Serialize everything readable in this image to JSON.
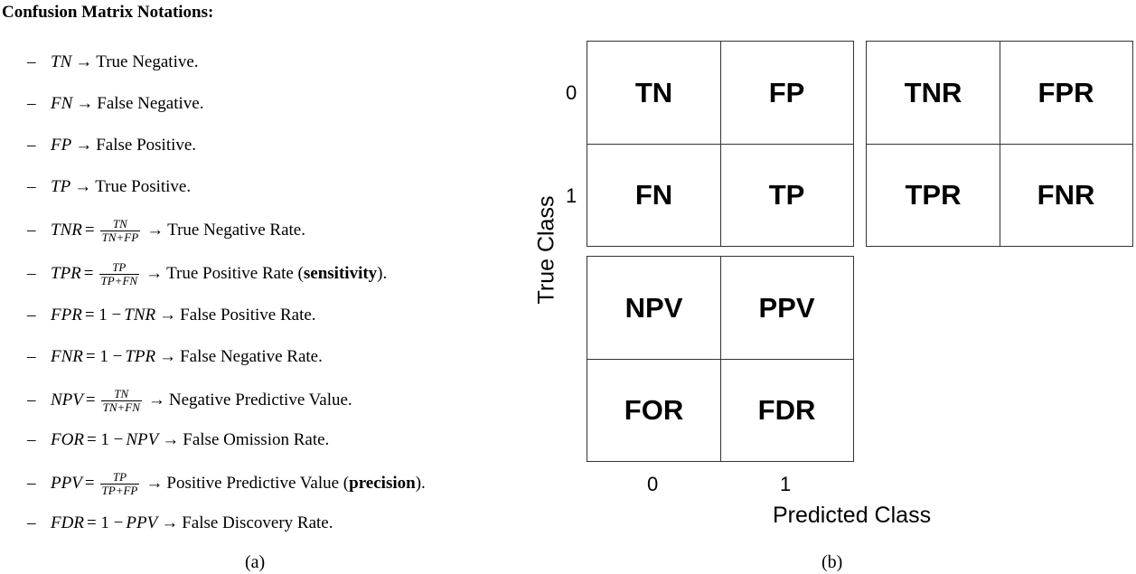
{
  "panel_a": {
    "heading": "Confusion Matrix Notations:",
    "dash": "–",
    "arrow": "→",
    "notations": [
      {
        "lhs": "TN",
        "desc": "True Negative."
      },
      {
        "lhs": "FN",
        "desc": "False Negative."
      },
      {
        "lhs": "FP",
        "desc": "False Positive."
      },
      {
        "lhs": "TP",
        "desc": "True Positive."
      },
      {
        "lhs": "TNR",
        "rel": "=",
        "num": "TN",
        "den": "TN+FP",
        "desc": "True Negative Rate."
      },
      {
        "lhs": "TPR",
        "rel": "=",
        "num": "TP",
        "den": "TP+FN",
        "desc": "True Positive Rate (",
        "desc_bold": "sensitivity",
        "desc_after": ")."
      },
      {
        "lhs": "FPR",
        "rel": "= 1 −",
        "expr": "TNR",
        "desc": "False Positive Rate."
      },
      {
        "lhs": "FNR",
        "rel": "= 1 −",
        "expr": "TPR",
        "desc": "False Negative Rate."
      },
      {
        "lhs": "NPV",
        "rel": "=",
        "num": "TN",
        "den": "TN+FN",
        "desc": "Negative Predictive Value."
      },
      {
        "lhs": "FOR",
        "rel": "= 1 −",
        "expr": "NPV",
        "desc": "False Omission Rate."
      },
      {
        "lhs": "PPV",
        "rel": "=",
        "num": "TP",
        "den": "TP+FP",
        "desc": "Positive Predictive Value (",
        "desc_bold": "precision",
        "desc_after": ")."
      },
      {
        "lhs": "FDR",
        "rel": "= 1 −",
        "expr": "PPV",
        "desc": "False Discovery Rate."
      }
    ],
    "caption": "(a)"
  },
  "panel_b": {
    "matrix_counts": [
      [
        "TN",
        "FP"
      ],
      [
        "FN",
        "TP"
      ]
    ],
    "matrix_rates": [
      [
        "TNR",
        "FPR"
      ],
      [
        "TPR",
        "FNR"
      ]
    ],
    "matrix_predictive": [
      [
        "NPV",
        "PPV"
      ],
      [
        "FOR",
        "FDR"
      ]
    ],
    "row_ticks": [
      "0",
      "1"
    ],
    "col_ticks": [
      "0",
      "1"
    ],
    "ylabel": "True Class",
    "xlabel": "Predicted Class",
    "caption": "(b)"
  }
}
